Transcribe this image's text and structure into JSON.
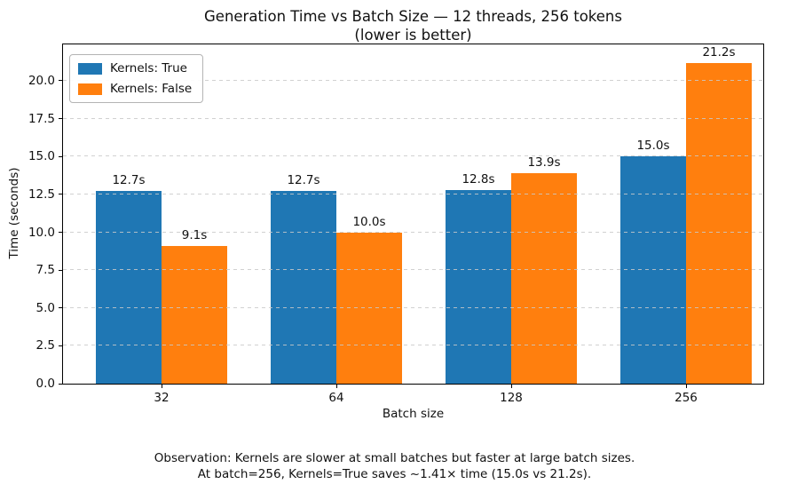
{
  "chart_data": {
    "type": "bar",
    "title": "Generation Time vs Batch Size — 12 threads, 256 tokens",
    "subtitle": "(lower is better)",
    "xlabel": "Batch size",
    "ylabel": "Time (seconds)",
    "categories": [
      "32",
      "64",
      "128",
      "256"
    ],
    "series": [
      {
        "name": "Kernels: True",
        "color": "#1f77b4",
        "values": [
          12.7,
          12.7,
          12.8,
          15.0
        ],
        "labels": [
          "12.7s",
          "12.7s",
          "12.8s",
          "15.0s"
        ]
      },
      {
        "name": "Kernels: False",
        "color": "#ff7f0e",
        "values": [
          9.1,
          10.0,
          13.9,
          21.2
        ],
        "labels": [
          "9.1s",
          "10.0s",
          "13.9s",
          "21.2s"
        ]
      }
    ],
    "yticks": [
      0.0,
      2.5,
      5.0,
      7.5,
      10.0,
      12.5,
      15.0,
      17.5,
      20.0
    ],
    "ytick_labels": [
      "0.0",
      "2.5",
      "5.0",
      "7.5",
      "10.0",
      "12.5",
      "15.0",
      "17.5",
      "20.0"
    ],
    "ylim": [
      0,
      22.4
    ],
    "grid": "horizontal-dashed",
    "grid_above_bars": true,
    "legend_position": "upper-left",
    "background": "#ffffff",
    "spine_color": "#000000"
  },
  "footnote": {
    "line1": "Observation: Kernels are slower at small batches but faster at large batch sizes.",
    "line2": "At batch=256, Kernels=True saves ~1.41× time (15.0s vs 21.2s)."
  }
}
